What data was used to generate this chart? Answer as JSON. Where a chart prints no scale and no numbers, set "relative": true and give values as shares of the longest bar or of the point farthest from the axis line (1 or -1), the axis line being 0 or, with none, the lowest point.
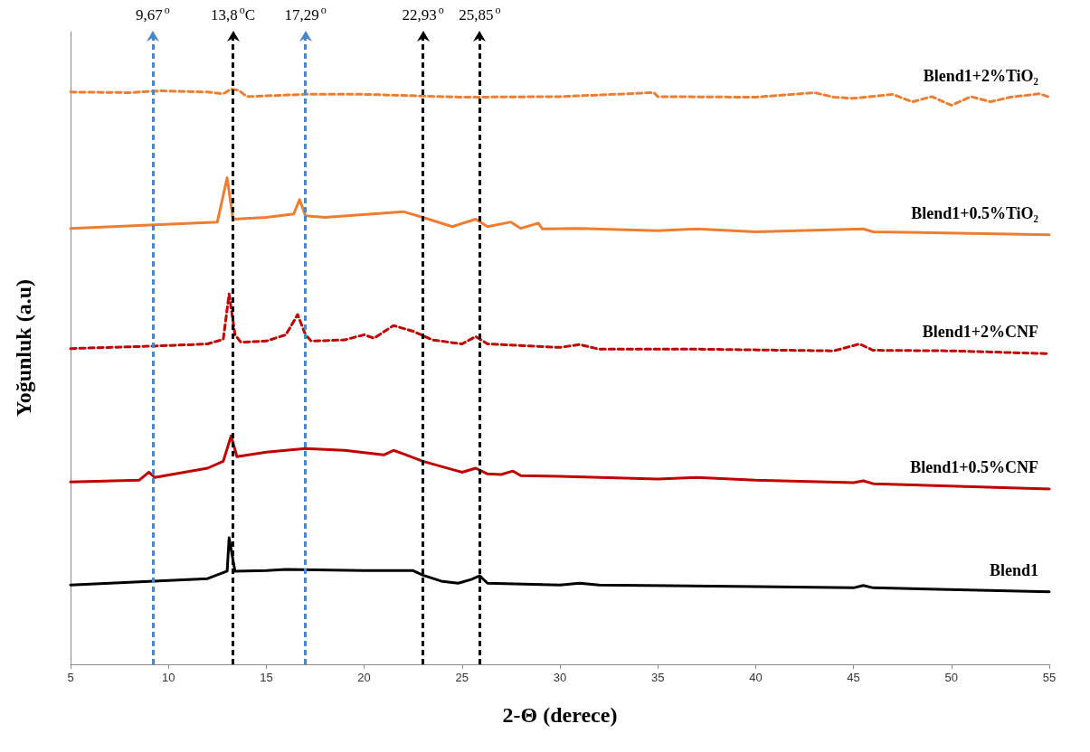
{
  "chart_data": {
    "type": "line",
    "relative": true,
    "xlabel": "2-Θ (derece)",
    "ylabel": "Yoğunluk (a.u)",
    "xlim": [
      5,
      55
    ],
    "xticks": [
      5,
      10,
      15,
      20,
      25,
      30,
      35,
      40,
      45,
      50,
      55
    ],
    "grid": false,
    "legend": false,
    "marker": "none",
    "series": [
      {
        "name": "Blend1+2%TiO₂",
        "color": "#ed7d31",
        "line_style": "dashed",
        "x": [
          5,
          8,
          9.5,
          12,
          12.8,
          13.2,
          13.6,
          14,
          17,
          20,
          25,
          30,
          34.8,
          35,
          40,
          43,
          44,
          45,
          47,
          48,
          49,
          50,
          51,
          52,
          53,
          54.5,
          55
        ],
        "values": [
          0.995,
          0.994,
          0.997,
          0.995,
          0.992,
          1,
          0.998,
          0.987,
          0.991,
          0.991,
          0.986,
          0.987,
          0.994,
          0.987,
          0.986,
          0.994,
          0.986,
          0.984,
          0.991,
          0.978,
          0.987,
          0.972,
          0.987,
          0.978,
          0.986,
          0.992,
          0.986
        ]
      },
      {
        "name": "Blend1+0.5%TiO₂",
        "color": "#ed7d31",
        "line_style": "solid",
        "x": [
          5,
          12.5,
          13.0,
          13.3,
          15,
          16.4,
          16.7,
          17.0,
          18,
          22,
          23,
          24.5,
          25.7,
          26.3,
          27.5,
          28,
          28.9,
          29.1,
          31,
          35,
          37,
          40,
          45.5,
          46,
          55
        ],
        "values": [
          0.758,
          0.769,
          0.846,
          0.774,
          0.777,
          0.783,
          0.808,
          0.78,
          0.777,
          0.787,
          0.777,
          0.761,
          0.774,
          0.761,
          0.769,
          0.758,
          0.767,
          0.757,
          0.758,
          0.754,
          0.757,
          0.752,
          0.757,
          0.752,
          0.747
        ]
      },
      {
        "name": "Blend1+2%CNF",
        "color": "#c00000",
        "line_style": "dashed",
        "x": [
          5,
          9,
          12,
          12.8,
          13.1,
          13.4,
          13.7,
          15,
          16,
          16.6,
          17.0,
          17.3,
          19,
          20,
          20.5,
          21.5,
          22.5,
          23.5,
          25,
          25.7,
          26.3,
          30,
          31,
          32,
          37,
          44,
          45.3,
          46,
          50,
          55
        ],
        "values": [
          0.549,
          0.553,
          0.557,
          0.565,
          0.644,
          0.573,
          0.56,
          0.562,
          0.573,
          0.608,
          0.573,
          0.562,
          0.564,
          0.573,
          0.567,
          0.589,
          0.579,
          0.564,
          0.557,
          0.57,
          0.557,
          0.551,
          0.556,
          0.548,
          0.548,
          0.545,
          0.557,
          0.546,
          0.545,
          0.54
        ]
      },
      {
        "name": "Blend1+0.5%CNF",
        "color": "#c00000",
        "line_style": "solid",
        "x": [
          5,
          8.5,
          9.0,
          9.3,
          12,
          12.8,
          13.2,
          13.5,
          15,
          17,
          19,
          21,
          21.5,
          22,
          23,
          25,
          25.7,
          26.3,
          27,
          27.6,
          28,
          30,
          35,
          37,
          40,
          45,
          45.5,
          46,
          55
        ],
        "values": [
          0.317,
          0.32,
          0.334,
          0.325,
          0.341,
          0.353,
          0.397,
          0.361,
          0.369,
          0.375,
          0.372,
          0.364,
          0.372,
          0.366,
          0.353,
          0.334,
          0.341,
          0.331,
          0.33,
          0.336,
          0.328,
          0.327,
          0.322,
          0.325,
          0.32,
          0.316,
          0.319,
          0.314,
          0.305
        ]
      },
      {
        "name": "Blend1",
        "color": "#000000",
        "line_style": "solid",
        "x": [
          5,
          12,
          13,
          13.1,
          13.4,
          15,
          16,
          20,
          22.5,
          23,
          24,
          24.8,
          25.5,
          25.9,
          26.3,
          30,
          31,
          32,
          40,
          45,
          45.5,
          46,
          55
        ],
        "values": [
          0.138,
          0.149,
          0.162,
          0.22,
          0.162,
          0.163,
          0.165,
          0.163,
          0.163,
          0.155,
          0.144,
          0.141,
          0.148,
          0.154,
          0.141,
          0.138,
          0.141,
          0.138,
          0.135,
          0.133,
          0.137,
          0.133,
          0.126
        ]
      }
    ],
    "ref_lines": [
      {
        "axis": "x",
        "value": 9.2,
        "label": "9,67$^{o}$",
        "color": "#4a86c8",
        "line_style": "dashed"
      },
      {
        "axis": "x",
        "value": 13.3,
        "label": "13,8$^{o}$C",
        "color": "#000000",
        "line_style": "dashed"
      },
      {
        "axis": "x",
        "value": 17.0,
        "label": "17,29$^{o}$",
        "color": "#4a86c8",
        "line_style": "dashed"
      },
      {
        "axis": "x",
        "value": 23.0,
        "label": "22,93$^{o}$",
        "color": "#000000",
        "line_style": "dashed"
      },
      {
        "axis": "x",
        "value": 25.9,
        "label": "25,85$^{o}$",
        "color": "#000000",
        "line_style": "dashed"
      }
    ]
  }
}
